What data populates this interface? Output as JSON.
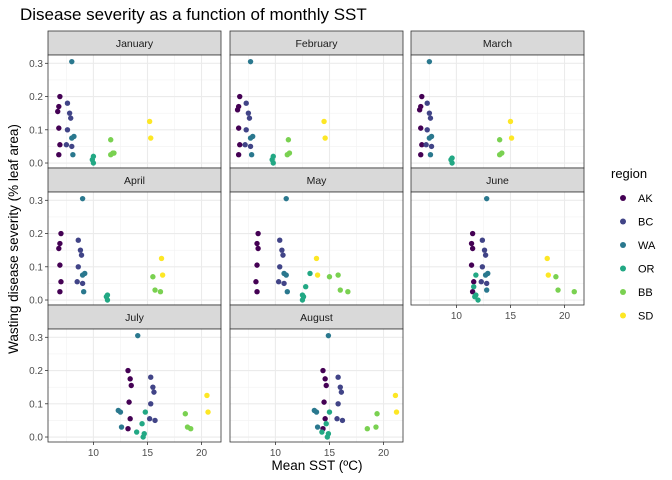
{
  "chart_data": {
    "type": "scatter",
    "title": "Disease severity as a function of monthly SST",
    "xlabel": "Mean SST (ºC)",
    "ylabel": "Wasting disease severity (% leaf area)",
    "xlim": [
      5.8,
      21.8
    ],
    "ylim": [
      -0.015,
      0.325
    ],
    "x_ticks": [
      10,
      15,
      20
    ],
    "y_ticks": [
      0.0,
      0.1,
      0.2,
      0.3
    ],
    "y_tick_labels": [
      "0.0",
      "0.1",
      "0.2",
      "0.3"
    ],
    "legend": {
      "title": "region",
      "position": "right",
      "entries": [
        {
          "name": "AK",
          "color": "#440154"
        },
        {
          "name": "BC",
          "color": "#414487"
        },
        {
          "name": "WA",
          "color": "#2a788e"
        },
        {
          "name": "OR",
          "color": "#22a884"
        },
        {
          "name": "BB",
          "color": "#7ad151"
        },
        {
          "name": "SD",
          "color": "#fde725"
        }
      ]
    },
    "grid": true,
    "facets": [
      {
        "month": "January",
        "points": {
          "AK": [
            [
              6.9,
              0.2
            ],
            [
              6.8,
              0.17
            ],
            [
              6.7,
              0.155
            ],
            [
              6.8,
              0.105
            ],
            [
              6.9,
              0.055
            ],
            [
              6.8,
              0.025
            ]
          ],
          "BC": [
            [
              7.6,
              0.18
            ],
            [
              7.8,
              0.15
            ],
            [
              7.9,
              0.135
            ],
            [
              7.6,
              0.1
            ],
            [
              7.5,
              0.055
            ],
            [
              8.0,
              0.05
            ]
          ],
          "WA": [
            [
              8.0,
              0.305
            ],
            [
              8.2,
              0.08
            ],
            [
              8.0,
              0.075
            ],
            [
              8.1,
              0.025
            ]
          ],
          "OR": [
            [
              10.0,
              0.02
            ],
            [
              9.9,
              0.01
            ],
            [
              10.0,
              0.0
            ]
          ],
          "BB": [
            [
              11.6,
              0.07
            ],
            [
              11.8,
              0.03
            ],
            [
              11.6,
              0.025
            ],
            [
              11.9,
              0.03
            ]
          ],
          "SD": [
            [
              15.2,
              0.125
            ],
            [
              15.3,
              0.075
            ]
          ]
        }
      },
      {
        "month": "February",
        "points": {
          "AK": [
            [
              6.7,
              0.2
            ],
            [
              6.6,
              0.17
            ],
            [
              6.5,
              0.16
            ],
            [
              6.6,
              0.105
            ],
            [
              6.7,
              0.055
            ],
            [
              6.6,
              0.025
            ]
          ],
          "BC": [
            [
              7.3,
              0.18
            ],
            [
              7.5,
              0.15
            ],
            [
              7.6,
              0.135
            ],
            [
              7.3,
              0.1
            ],
            [
              7.2,
              0.055
            ],
            [
              7.7,
              0.05
            ]
          ],
          "WA": [
            [
              7.7,
              0.305
            ],
            [
              7.9,
              0.08
            ],
            [
              7.7,
              0.075
            ],
            [
              7.8,
              0.025
            ]
          ],
          "OR": [
            [
              9.8,
              0.02
            ],
            [
              9.7,
              0.01
            ],
            [
              9.8,
              0.0
            ]
          ],
          "BB": [
            [
              11.2,
              0.07
            ],
            [
              11.3,
              0.03
            ],
            [
              11.1,
              0.025
            ]
          ],
          "SD": [
            [
              14.5,
              0.125
            ],
            [
              14.6,
              0.075
            ]
          ]
        }
      },
      {
        "month": "March",
        "points": {
          "AK": [
            [
              6.8,
              0.2
            ],
            [
              6.7,
              0.17
            ],
            [
              6.6,
              0.16
            ],
            [
              6.7,
              0.105
            ],
            [
              6.8,
              0.055
            ],
            [
              6.7,
              0.025
            ]
          ],
          "BC": [
            [
              7.3,
              0.18
            ],
            [
              7.5,
              0.15
            ],
            [
              7.6,
              0.135
            ],
            [
              7.3,
              0.1
            ],
            [
              7.2,
              0.055
            ],
            [
              7.7,
              0.05
            ]
          ],
          "WA": [
            [
              7.5,
              0.305
            ],
            [
              7.7,
              0.08
            ],
            [
              7.5,
              0.075
            ],
            [
              7.6,
              0.025
            ]
          ],
          "OR": [
            [
              9.6,
              0.015
            ],
            [
              9.5,
              0.01
            ],
            [
              9.6,
              0.0
            ]
          ],
          "BB": [
            [
              14.0,
              0.07
            ],
            [
              14.2,
              0.03
            ],
            [
              14.0,
              0.025
            ]
          ],
          "SD": [
            [
              15.0,
              0.125
            ],
            [
              15.1,
              0.075
            ]
          ]
        }
      },
      {
        "month": "April",
        "points": {
          "AK": [
            [
              7.0,
              0.2
            ],
            [
              6.9,
              0.17
            ],
            [
              6.8,
              0.155
            ],
            [
              6.9,
              0.105
            ],
            [
              7.0,
              0.055
            ],
            [
              6.9,
              0.025
            ]
          ],
          "BC": [
            [
              8.6,
              0.18
            ],
            [
              8.8,
              0.15
            ],
            [
              8.9,
              0.135
            ],
            [
              8.6,
              0.1
            ],
            [
              8.5,
              0.055
            ],
            [
              9.0,
              0.05
            ]
          ],
          "WA": [
            [
              9.0,
              0.305
            ],
            [
              9.2,
              0.08
            ],
            [
              9.0,
              0.075
            ],
            [
              9.1,
              0.025
            ]
          ],
          "OR": [
            [
              11.3,
              0.015
            ],
            [
              11.2,
              0.01
            ],
            [
              11.3,
              0.0
            ]
          ],
          "BB": [
            [
              15.5,
              0.07
            ],
            [
              15.7,
              0.03
            ],
            [
              16.2,
              0.025
            ]
          ],
          "SD": [
            [
              16.3,
              0.125
            ],
            [
              16.4,
              0.075
            ]
          ]
        }
      },
      {
        "month": "May",
        "points": {
          "AK": [
            [
              8.4,
              0.2
            ],
            [
              8.3,
              0.17
            ],
            [
              8.4,
              0.155
            ],
            [
              8.3,
              0.105
            ],
            [
              8.2,
              0.055
            ],
            [
              8.3,
              0.025
            ]
          ],
          "BC": [
            [
              10.4,
              0.18
            ],
            [
              10.6,
              0.15
            ],
            [
              10.7,
              0.135
            ],
            [
              10.4,
              0.1
            ],
            [
              10.3,
              0.055
            ],
            [
              10.8,
              0.05
            ]
          ],
          "WA": [
            [
              11.0,
              0.305
            ],
            [
              10.8,
              0.08
            ],
            [
              11.0,
              0.075
            ],
            [
              11.1,
              0.025
            ]
          ],
          "OR": [
            [
              13.2,
              0.08
            ],
            [
              12.8,
              0.04
            ],
            [
              12.5,
              0.015
            ],
            [
              12.6,
              0.01
            ],
            [
              12.5,
              0.0
            ]
          ],
          "BB": [
            [
              15.0,
              0.07
            ],
            [
              15.8,
              0.075
            ],
            [
              16.0,
              0.03
            ],
            [
              16.7,
              0.025
            ]
          ],
          "SD": [
            [
              13.8,
              0.125
            ],
            [
              13.9,
              0.075
            ]
          ]
        }
      },
      {
        "month": "June",
        "points": {
          "AK": [
            [
              11.5,
              0.2
            ],
            [
              11.4,
              0.17
            ],
            [
              11.5,
              0.155
            ],
            [
              11.4,
              0.105
            ],
            [
              11.6,
              0.055
            ],
            [
              11.5,
              0.025
            ]
          ],
          "BC": [
            [
              12.4,
              0.18
            ],
            [
              12.6,
              0.15
            ],
            [
              12.7,
              0.135
            ],
            [
              12.4,
              0.1
            ],
            [
              12.3,
              0.055
            ],
            [
              12.8,
              0.05
            ]
          ],
          "WA": [
            [
              12.8,
              0.305
            ],
            [
              12.9,
              0.08
            ],
            [
              12.7,
              0.075
            ],
            [
              12.8,
              0.03
            ]
          ],
          "OR": [
            [
              11.8,
              0.075
            ],
            [
              11.6,
              0.04
            ],
            [
              11.8,
              0.015
            ],
            [
              11.7,
              0.01
            ],
            [
              12.0,
              0.0
            ]
          ],
          "BB": [
            [
              19.2,
              0.07
            ],
            [
              19.4,
              0.03
            ],
            [
              20.9,
              0.025
            ]
          ],
          "SD": [
            [
              18.4,
              0.125
            ],
            [
              18.5,
              0.075
            ]
          ]
        }
      },
      {
        "month": "July",
        "points": {
          "AK": [
            [
              13.2,
              0.2
            ],
            [
              13.4,
              0.175
            ],
            [
              13.5,
              0.155
            ],
            [
              13.3,
              0.105
            ],
            [
              13.4,
              0.055
            ],
            [
              13.2,
              0.025
            ]
          ],
          "BC": [
            [
              15.3,
              0.18
            ],
            [
              15.5,
              0.15
            ],
            [
              15.6,
              0.135
            ],
            [
              15.3,
              0.1
            ],
            [
              15.2,
              0.055
            ],
            [
              15.7,
              0.05
            ]
          ],
          "WA": [
            [
              14.1,
              0.305
            ],
            [
              12.3,
              0.08
            ],
            [
              12.5,
              0.075
            ],
            [
              12.6,
              0.03
            ]
          ],
          "OR": [
            [
              14.8,
              0.075
            ],
            [
              14.5,
              0.04
            ],
            [
              14.0,
              0.015
            ],
            [
              14.7,
              0.01
            ],
            [
              14.6,
              0.0
            ]
          ],
          "BB": [
            [
              18.5,
              0.07
            ],
            [
              18.7,
              0.03
            ],
            [
              19.0,
              0.025
            ]
          ],
          "SD": [
            [
              20.5,
              0.125
            ],
            [
              20.6,
              0.075
            ]
          ]
        }
      },
      {
        "month": "August",
        "points": {
          "AK": [
            [
              14.4,
              0.2
            ],
            [
              14.6,
              0.175
            ],
            [
              14.7,
              0.155
            ],
            [
              14.5,
              0.105
            ],
            [
              14.6,
              0.055
            ],
            [
              14.4,
              0.025
            ]
          ],
          "BC": [
            [
              15.8,
              0.18
            ],
            [
              16.0,
              0.15
            ],
            [
              16.1,
              0.135
            ],
            [
              15.8,
              0.1
            ],
            [
              15.7,
              0.055
            ],
            [
              16.2,
              0.05
            ]
          ],
          "WA": [
            [
              14.9,
              0.305
            ],
            [
              13.6,
              0.08
            ],
            [
              13.8,
              0.075
            ],
            [
              13.9,
              0.03
            ]
          ],
          "OR": [
            [
              15.0,
              0.075
            ],
            [
              14.7,
              0.04
            ],
            [
              14.3,
              0.015
            ],
            [
              14.9,
              0.01
            ],
            [
              14.8,
              0.0
            ]
          ],
          "BB": [
            [
              19.4,
              0.07
            ],
            [
              19.3,
              0.03
            ],
            [
              18.5,
              0.025
            ]
          ],
          "SD": [
            [
              21.1,
              0.125
            ],
            [
              21.2,
              0.075
            ]
          ]
        }
      }
    ]
  }
}
